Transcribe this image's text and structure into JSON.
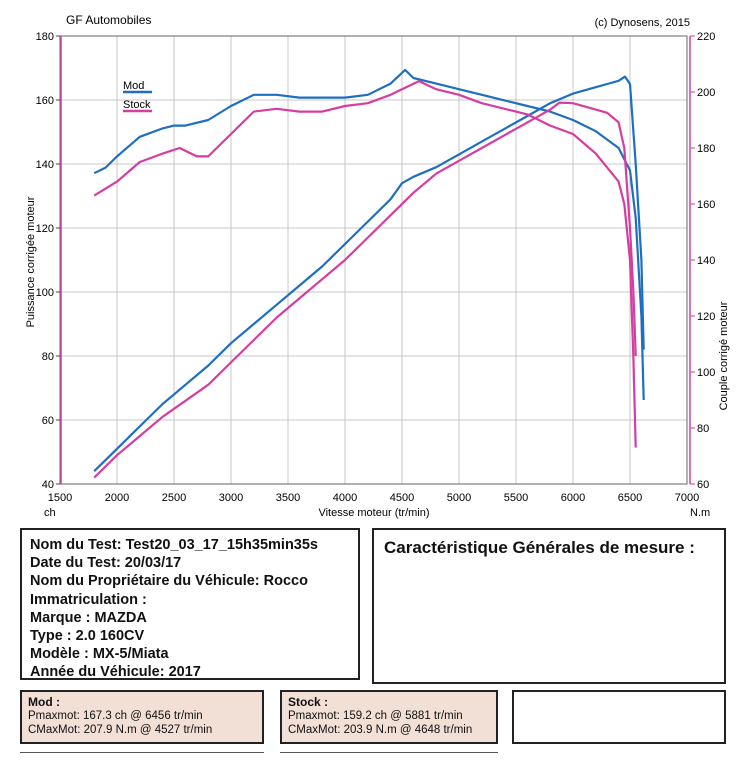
{
  "chart_data": {
    "type": "line",
    "title_left": "GF Automobiles",
    "title_right": "(c) Dynosens, 2015",
    "xlabel": "Vitesse moteur (tr/min)",
    "ylabel_left": "Puissance corrigée moteur",
    "ylabel_right": "Couple corrigé moteur",
    "x_unit_left": "ch",
    "x_unit_right": "N.m",
    "xlim": [
      1500,
      7000
    ],
    "ylim_left": [
      40,
      180
    ],
    "ylim_right": [
      60,
      220
    ],
    "x_ticks": [
      "1500",
      "2000",
      "2500",
      "3000",
      "3500",
      "4000",
      "4500",
      "5000",
      "5500",
      "6000",
      "6500",
      "7000"
    ],
    "y_ticks_left": [
      "40",
      "60",
      "80",
      "100",
      "120",
      "140",
      "160",
      "180"
    ],
    "y_ticks_right": [
      "60",
      "80",
      "100",
      "120",
      "140",
      "160",
      "180",
      "200",
      "220"
    ],
    "grid": true,
    "legend_position": "top-left",
    "series": [
      {
        "name": "Mod",
        "color": "#1f6fc1",
        "power": {
          "x": [
            1800,
            2000,
            2200,
            2400,
            2600,
            2800,
            3000,
            3200,
            3400,
            3600,
            3800,
            4000,
            4200,
            4400,
            4500,
            4600,
            4800,
            5000,
            5200,
            5400,
            5600,
            5800,
            6000,
            6200,
            6300,
            6400,
            6456,
            6500,
            6550,
            6600,
            6620
          ],
          "y": [
            44,
            51,
            58,
            65,
            71,
            77,
            84,
            90,
            96,
            102,
            108,
            115,
            122,
            129,
            134,
            136,
            139,
            143,
            147,
            151,
            155,
            159,
            162,
            164,
            165,
            166,
            167.3,
            165,
            140,
            110,
            82
          ]
        },
        "torque": {
          "x": [
            1800,
            1900,
            2000,
            2200,
            2400,
            2500,
            2600,
            2800,
            3000,
            3200,
            3400,
            3600,
            3800,
            4000,
            4200,
            4400,
            4527,
            4600,
            4800,
            5000,
            5200,
            5400,
            5600,
            5800,
            6000,
            6200,
            6400,
            6500,
            6550,
            6600,
            6620
          ],
          "y": [
            171,
            173,
            177,
            184,
            187,
            188,
            188,
            190,
            195,
            199,
            199,
            198,
            198,
            198,
            199,
            203,
            207.9,
            205,
            203,
            201,
            199,
            197,
            195,
            193,
            190,
            186,
            180,
            172,
            155,
            120,
            90
          ]
        }
      },
      {
        "name": "Stock",
        "color": "#d63da0",
        "power": {
          "x": [
            1800,
            2000,
            2200,
            2400,
            2600,
            2800,
            3000,
            3200,
            3400,
            3600,
            3800,
            4000,
            4200,
            4400,
            4600,
            4800,
            5000,
            5200,
            5400,
            5600,
            5800,
            5881,
            6000,
            6200,
            6300,
            6400,
            6450,
            6500,
            6530,
            6550
          ],
          "y": [
            42,
            49,
            55,
            61,
            66,
            71,
            78,
            85,
            92,
            98,
            104,
            110,
            117,
            124,
            131,
            137,
            141,
            145,
            149,
            153,
            157,
            159.2,
            159,
            157,
            156,
            153,
            145,
            120,
            100,
            80
          ]
        },
        "torque": {
          "x": [
            1800,
            2000,
            2200,
            2400,
            2550,
            2700,
            2800,
            3000,
            3200,
            3400,
            3600,
            3800,
            4000,
            4200,
            4400,
            4648,
            4800,
            5000,
            5200,
            5400,
            5600,
            5800,
            6000,
            6200,
            6400,
            6450,
            6500,
            6530,
            6550
          ],
          "y": [
            163,
            168,
            175,
            178,
            180,
            177,
            177,
            185,
            193,
            194,
            193,
            193,
            195,
            196,
            199,
            203.9,
            201,
            199,
            196,
            194,
            192,
            188,
            185,
            178,
            168,
            160,
            140,
            105,
            73
          ]
        }
      }
    ]
  },
  "test_info": {
    "lines": [
      "Nom du Test: Test20_03_17_15h35min35s",
      "Date du Test: 20/03/17",
      "Nom du Propriétaire du Véhicule: Rocco",
      "Immatriculation  :",
      "Marque  : MAZDA",
      "Type  : 2.0 160CV",
      "Modèle  : MX-5/Miata",
      "Année du Véhicule: 2017"
    ]
  },
  "caracteristiques": {
    "title": "Caractéristique Générales de mesure :"
  },
  "results": {
    "mod": {
      "title": "Mod :",
      "pmax": "Pmaxmot: 167.3 ch @ 6456 tr/min",
      "cmax": "CMaxMot: 207.9 N.m @ 4527 tr/min"
    },
    "stock": {
      "title": "Stock :",
      "pmax": "Pmaxmot: 159.2 ch @ 5881 tr/min",
      "cmax": "CMaxMot: 203.9 N.m @ 4648 tr/min"
    }
  }
}
